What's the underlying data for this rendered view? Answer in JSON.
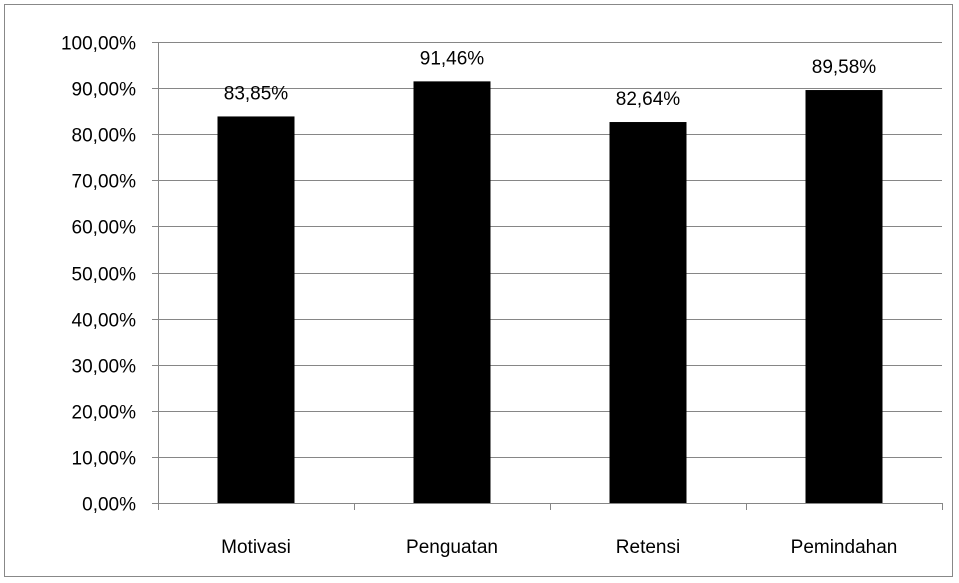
{
  "chart_data": {
    "type": "bar",
    "categories": [
      "Motivasi",
      "Penguatan",
      "Retensi",
      "Pemindahan"
    ],
    "values": [
      83.85,
      91.46,
      82.64,
      89.58
    ],
    "value_labels": [
      "83,85%",
      "91,46%",
      "82,64%",
      "89,58%"
    ],
    "ylim": [
      0,
      100
    ],
    "yticks": [
      0,
      10,
      20,
      30,
      40,
      50,
      60,
      70,
      80,
      90,
      100
    ],
    "ytick_labels": [
      "0,00%",
      "10,00%",
      "20,00%",
      "30,00%",
      "40,00%",
      "50,00%",
      "60,00%",
      "70,00%",
      "80,00%",
      "90,00%",
      "100,00%"
    ],
    "grid": true,
    "legend": "none",
    "colors": {
      "bar": "#000000",
      "grid": "#868686",
      "axis": "#868686",
      "text": "#000000"
    }
  }
}
